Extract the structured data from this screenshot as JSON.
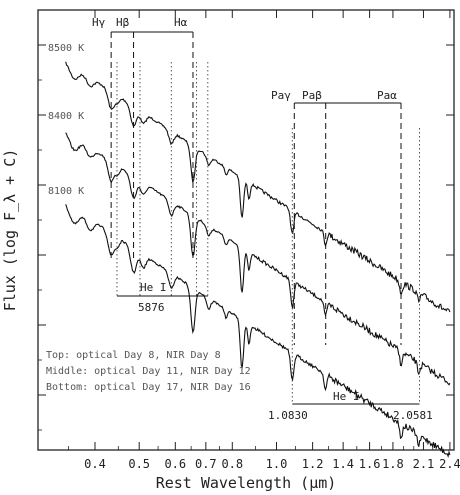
{
  "chart_data": {
    "type": "line",
    "xlabel": "Rest Wavelength (μm)",
    "ylabel": "Flux (log F_λ + C)",
    "x_scale": "log",
    "xlim": [
      0.3,
      2.45
    ],
    "x_ticks": [
      "0.4",
      "0.5",
      "0.6",
      "0.7",
      "0.8",
      "1.0",
      "1.2",
      "1.4",
      "1.6",
      "1.8",
      "2.1",
      "2.4"
    ],
    "x_tick_values": [
      0.4,
      0.5,
      0.6,
      0.7,
      0.8,
      1.0,
      1.2,
      1.4,
      1.6,
      1.8,
      2.1,
      2.4
    ],
    "y_tick_count": 6,
    "series": [
      {
        "name": "Top: optical Day 8, NIR Day 8",
        "blackbody": "8500 K",
        "offset": 0.0
      },
      {
        "name": "Middle: optical Day 11, NIR Day 12",
        "blackbody": "8400 K",
        "offset": 0.5
      },
      {
        "name": "Bottom: optical Day 17, NIR Day 16",
        "blackbody": "8100 K",
        "offset": 1.0
      }
    ],
    "line_markers": {
      "hydrogen_optical": [
        {
          "label": "Hγ",
          "wavelength": 0.434
        },
        {
          "label": "Hβ",
          "wavelength": 0.486
        },
        {
          "label": "Hα",
          "wavelength": 0.656
        }
      ],
      "hydrogen_nir": [
        {
          "label": "Paγ",
          "wavelength": 1.094
        },
        {
          "label": "Paβ",
          "wavelength": 1.282
        },
        {
          "label": "Paα",
          "wavelength": 1.875
        }
      ],
      "he_i_optical": {
        "label": "He I",
        "wavelength_label": "5876",
        "lines": [
          0.447,
          0.502,
          0.588,
          0.668,
          0.707
        ]
      },
      "he_i_nir": {
        "label": "He I",
        "wavelength_labels": [
          "1.0830",
          "2.0581"
        ],
        "lines": [
          1.083,
          2.058
        ]
      }
    }
  },
  "legend_lines": [
    "Top: optical Day 8, NIR Day 8",
    "Middle: optical Day 11, NIR Day 12",
    "Bottom: optical Day 17, NIR Day 16"
  ],
  "temps": [
    "8500 K",
    "8400 K",
    "8100 K"
  ],
  "labels": {
    "hgamma": "Hγ",
    "hbeta": "Hβ",
    "halpha": "Hα",
    "pagamma": "Paγ",
    "pabeta": "Paβ",
    "paalpha": "Paα",
    "hei_opt": "He I",
    "hei_opt_wl": "5876",
    "hei_nir": "He I",
    "hei_nir_wl1": "1.0830",
    "hei_nir_wl2": "2.0581"
  },
  "axes": {
    "xlabel": "Rest Wavelength (μm)",
    "ylabel": "Flux (log F_λ + C)"
  }
}
